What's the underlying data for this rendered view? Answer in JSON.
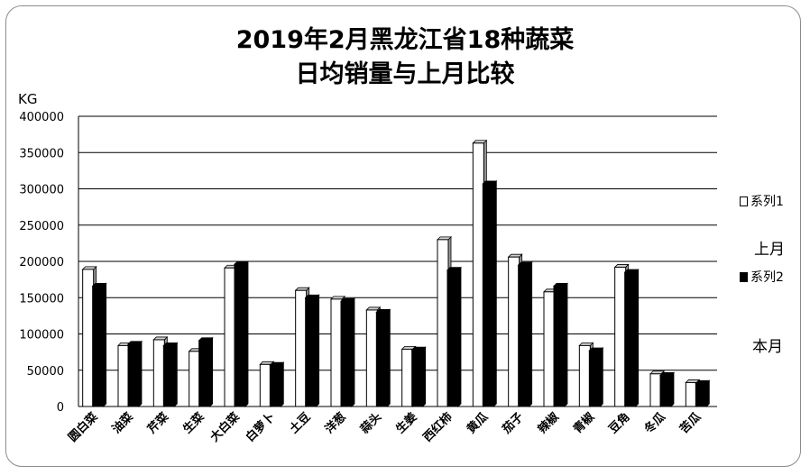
{
  "chart_data": {
    "type": "bar",
    "title_lines": [
      "2019年2月黑龙江省18种蔬菜",
      "日均销量与上月比较"
    ],
    "ylabel": "KG",
    "ylim": [
      0,
      400000
    ],
    "yticks": [
      0,
      50000,
      100000,
      150000,
      200000,
      250000,
      300000,
      350000,
      400000
    ],
    "grid": true,
    "legend_placement": "right",
    "categories": [
      "圆白菜",
      "油菜",
      "芹菜",
      "生菜",
      "大白菜",
      "白萝卜",
      "土豆",
      "洋葱",
      "蒜头",
      "生姜",
      "西红柿",
      "黄瓜",
      "茄子",
      "辣椒",
      "青椒",
      "豆角",
      "冬瓜",
      "苦瓜"
    ],
    "series": [
      {
        "name": "系列1",
        "color": "#ffffff",
        "values": [
          189000,
          84000,
          92000,
          76000,
          191000,
          58000,
          160000,
          148000,
          133000,
          79000,
          230000,
          363000,
          206000,
          158000,
          84000,
          192000,
          45000,
          33000
        ]
      },
      {
        "name": "系列2",
        "color": "#000000",
        "values": [
          166000,
          86000,
          84000,
          91000,
          196000,
          57000,
          150000,
          145000,
          130000,
          78000,
          188000,
          307000,
          195000,
          166000,
          77000,
          185000,
          43000,
          32000
        ]
      }
    ],
    "annotations": [
      "上月",
      "本月"
    ]
  }
}
